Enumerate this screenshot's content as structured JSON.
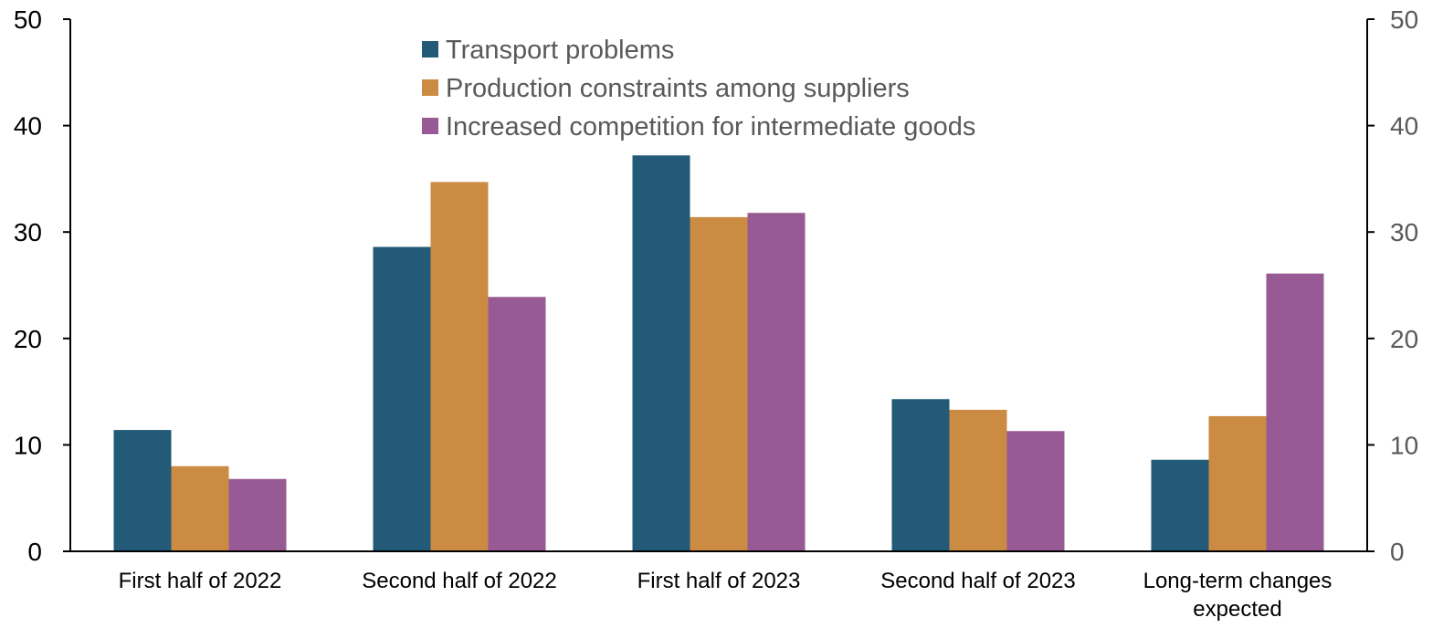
{
  "chart_data": {
    "type": "bar",
    "categories": [
      [
        "First half of 2022"
      ],
      [
        "Second half of 2022"
      ],
      [
        "First half of 2023"
      ],
      [
        "Second half of 2023"
      ],
      [
        "Long-term changes",
        "expected"
      ]
    ],
    "series": [
      {
        "name": "Transport problems",
        "color": "#225a78",
        "values": [
          11.4,
          28.6,
          37.2,
          14.3,
          8.6
        ]
      },
      {
        "name": "Production constraints among suppliers",
        "color": "#cc8b42",
        "values": [
          8.0,
          34.7,
          31.4,
          13.3,
          12.7
        ]
      },
      {
        "name": "Increased competition for intermediate goods",
        "color": "#975a94",
        "values": [
          6.8,
          23.9,
          31.8,
          11.3,
          26.1
        ]
      }
    ],
    "ylim": [
      0,
      50
    ],
    "yticks": [
      0,
      10,
      20,
      30,
      40,
      50
    ],
    "right_axis": true,
    "grid": false,
    "legend_position": "top-center"
  }
}
